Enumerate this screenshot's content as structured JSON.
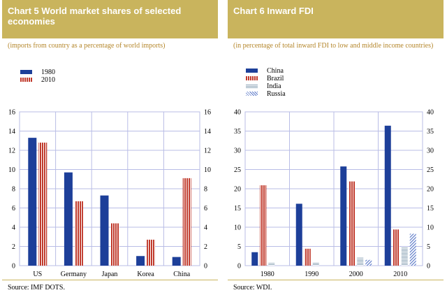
{
  "colors": {
    "header_bg": "#c9b45d",
    "note_text": "#b4862a",
    "grid": "#b9bde6",
    "blue": "#1d3f99",
    "red": "#c0392b",
    "light_blue": "#8fa6b8",
    "hatch_blue": "#5b79c8"
  },
  "chart_data": [
    {
      "type": "bar",
      "title": "Chart 5 World market shares of selected economies",
      "subtitle": "(imports from country as a percentage of world imports)",
      "categories": [
        "US",
        "Germany",
        "Japan",
        "Korea",
        "China"
      ],
      "series": [
        {
          "name": "1980",
          "values": [
            13.3,
            9.7,
            7.3,
            1.0,
            0.9
          ],
          "color": "#1d3f99",
          "style": "solid"
        },
        {
          "name": "2010",
          "values": [
            12.8,
            6.7,
            4.4,
            2.7,
            9.1
          ],
          "color": "#c0392b",
          "style": "striped"
        }
      ],
      "ylim": [
        0,
        16
      ],
      "yticks": [
        "0",
        "2",
        "4",
        "6",
        "8",
        "10",
        "12",
        "14",
        "16"
      ],
      "y_axis_both_sides": true,
      "grid": true,
      "legend_position": "top-left",
      "source": "Source: IMF DOTS."
    },
    {
      "type": "bar",
      "title": "Chart 6 Inward FDI",
      "subtitle": "(in percentage of total inward FDI to low and middle income countries)",
      "categories": [
        "1980",
        "1990",
        "2000",
        "2010"
      ],
      "series": [
        {
          "name": "China",
          "values": [
            3.5,
            16.1,
            25.8,
            36.4
          ],
          "color": "#1d3f99",
          "style": "solid"
        },
        {
          "name": "Brazil",
          "values": [
            20.9,
            4.4,
            21.9,
            9.4
          ],
          "color": "#c0392b",
          "style": "striped"
        },
        {
          "name": "India",
          "values": [
            0.7,
            0.9,
            2.1,
            4.7
          ],
          "color": "#8fa6b8",
          "style": "lined"
        },
        {
          "name": "Russia",
          "values": [
            0.0,
            0.0,
            1.5,
            8.3
          ],
          "color": "#5b79c8",
          "style": "hatched"
        }
      ],
      "ylim": [
        0,
        40
      ],
      "yticks": [
        "0",
        "5",
        "10",
        "15",
        "20",
        "25",
        "30",
        "35",
        "40"
      ],
      "y_axis_both_sides": true,
      "grid": true,
      "legend_position": "top-left",
      "source": "Source: WDI."
    }
  ]
}
